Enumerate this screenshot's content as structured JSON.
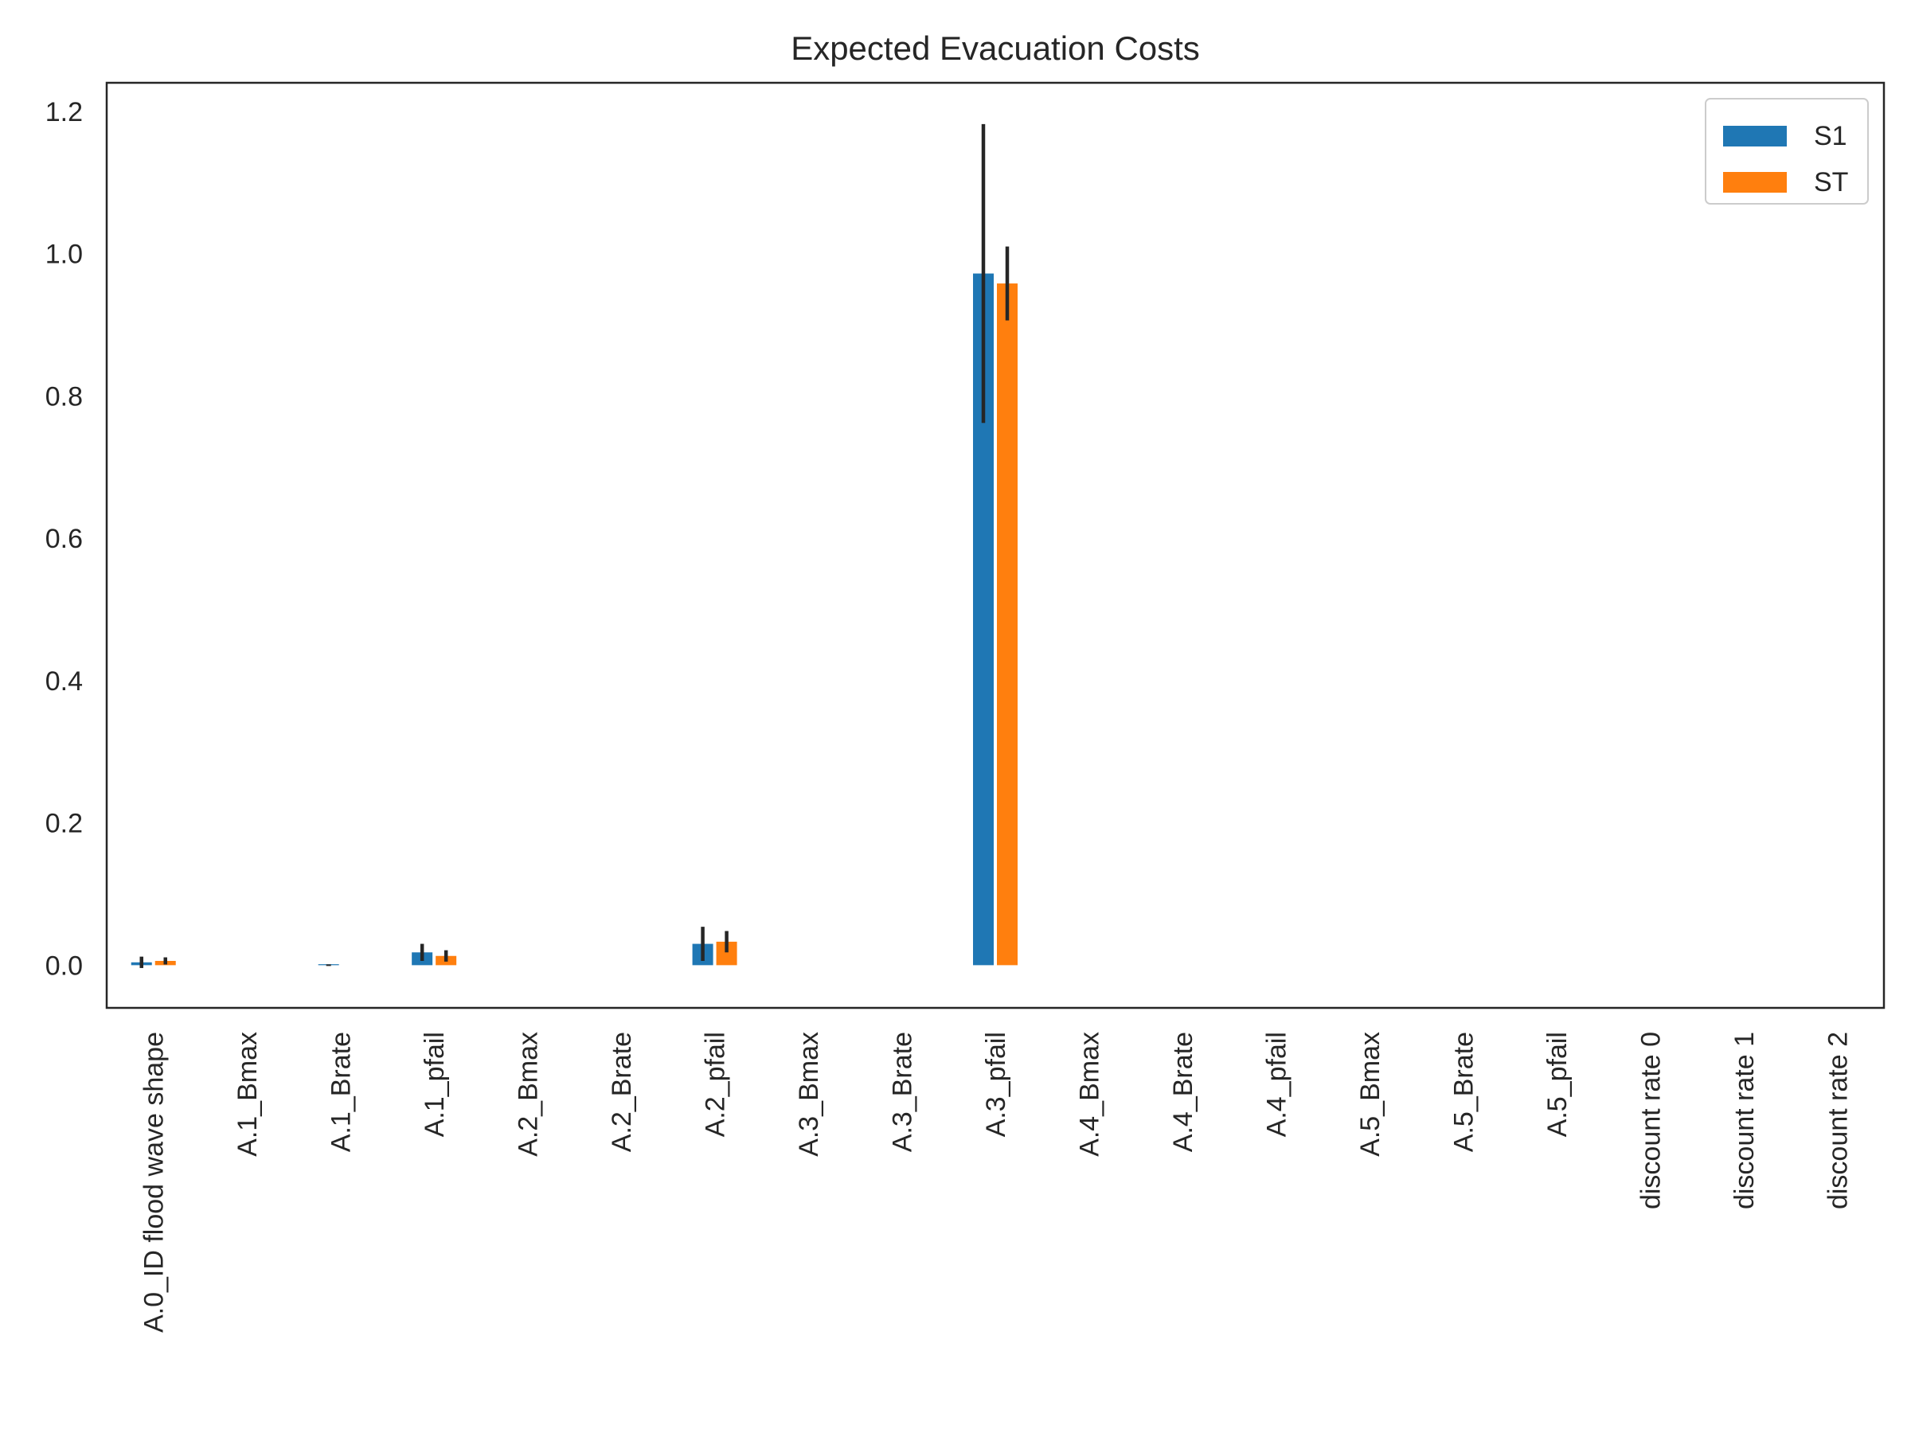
{
  "chart_data": {
    "type": "bar",
    "title": "Expected Evacuation Costs",
    "xlabel": "",
    "ylabel": "",
    "ylim": [
      -0.06,
      1.24
    ],
    "yticks": [
      0.0,
      0.2,
      0.4,
      0.6,
      0.8,
      1.0,
      1.2
    ],
    "ytick_labels": [
      "0.0",
      "0.2",
      "0.4",
      "0.6",
      "0.8",
      "1.0",
      "1.2"
    ],
    "grid": false,
    "legend_position": "top-right",
    "categories": [
      "A.0_ID flood wave shape",
      "A.1_Bmax",
      "A.1_Brate",
      "A.1_pfail",
      "A.2_Bmax",
      "A.2_Brate",
      "A.2_pfail",
      "A.3_Bmax",
      "A.3_Brate",
      "A.3_pfail",
      "A.4_Bmax",
      "A.4_Brate",
      "A.4_pfail",
      "A.5_Bmax",
      "A.5_Brate",
      "A.5_pfail",
      "discount rate 0",
      "discount rate 1",
      "discount rate 2"
    ],
    "series": [
      {
        "name": "S1",
        "color": "#1f77b4",
        "values": [
          0.004,
          0.0,
          0.001,
          0.018,
          0.0,
          0.0,
          0.03,
          0.0,
          0.0,
          0.972,
          0.0,
          0.0,
          0.0,
          0.0,
          0.0,
          0.0,
          0.0,
          0.0,
          0.0
        ],
        "errors": [
          0.008,
          0.0,
          0.0,
          0.012,
          0.0,
          0.0,
          0.024,
          0.0,
          0.0,
          0.21,
          0.0,
          0.0,
          0.0,
          0.0,
          0.0,
          0.0,
          0.0,
          0.0,
          0.0
        ]
      },
      {
        "name": "ST",
        "color": "#ff7f0e",
        "values": [
          0.006,
          0.0,
          0.0,
          0.013,
          0.0,
          0.0,
          0.033,
          0.0,
          0.0,
          0.958,
          0.0,
          0.0,
          0.0,
          0.0,
          0.0,
          0.0,
          0.0,
          0.0,
          0.0
        ],
        "errors": [
          0.005,
          0.0,
          0.0,
          0.008,
          0.0,
          0.0,
          0.015,
          0.0,
          0.0,
          0.052,
          0.0,
          0.0,
          0.0,
          0.0,
          0.0,
          0.0,
          0.0,
          0.0,
          0.0
        ]
      }
    ],
    "error_bar_color": "#262626"
  }
}
